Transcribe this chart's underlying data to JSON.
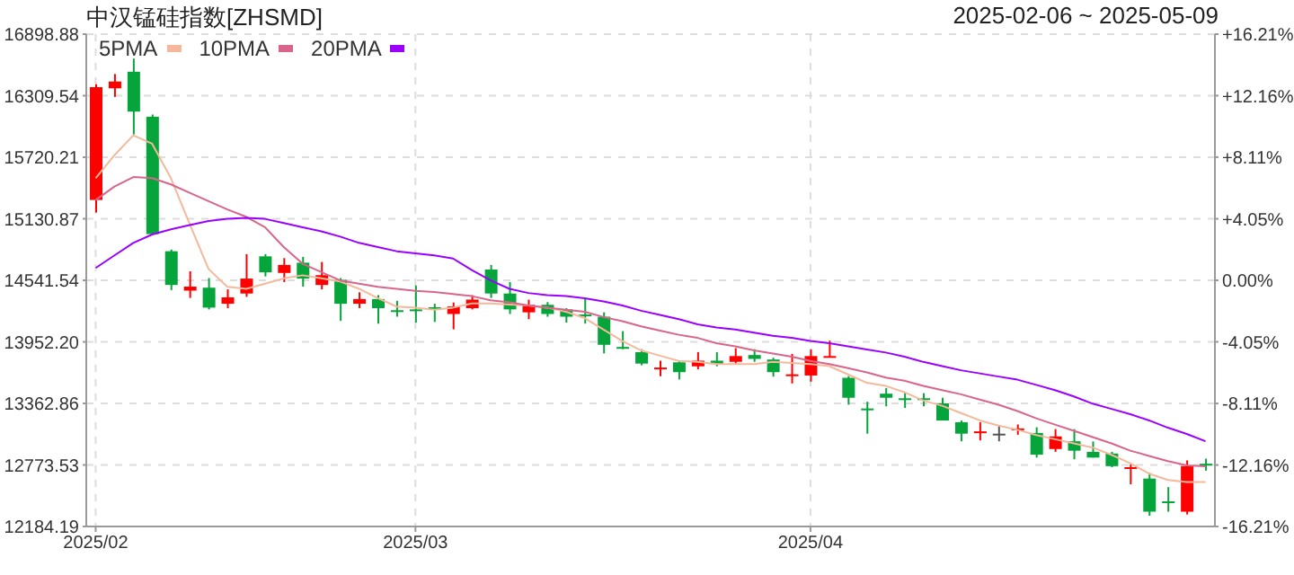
{
  "chart_data": {
    "type": "candlestick",
    "title": "中汉锰硅指数[ZHSMD]",
    "subtitle": "2025-02-06 ~ 2025-05-09",
    "categories": [
      "2025/02",
      null,
      null,
      null,
      null,
      null,
      null,
      null,
      null,
      null,
      null,
      null,
      null,
      null,
      null,
      null,
      null,
      "2025/03",
      null,
      null,
      null,
      null,
      null,
      null,
      null,
      null,
      null,
      null,
      null,
      null,
      null,
      null,
      null,
      null,
      null,
      null,
      null,
      null,
      "2025/04",
      null,
      null,
      null,
      null,
      null,
      null,
      null,
      null,
      null,
      null,
      null,
      null,
      null,
      null,
      null,
      null,
      null,
      null,
      null,
      null,
      null
    ],
    "ohlc": [
      [
        15311,
        16419,
        15191,
        16391
      ],
      [
        16380,
        16517,
        16298,
        16445
      ],
      [
        16539,
        16665,
        15938,
        16157
      ],
      [
        16108,
        16129,
        14984,
        14984
      ],
      [
        14820,
        14836,
        14448,
        14497
      ],
      [
        14443,
        14628,
        14373,
        14481
      ],
      [
        14471,
        14563,
        14263,
        14280
      ],
      [
        14317,
        14455,
        14275,
        14378
      ],
      [
        14415,
        14792,
        14383,
        14558
      ],
      [
        14771,
        14792,
        14579,
        14618
      ],
      [
        14612,
        14754,
        14525,
        14689
      ],
      [
        14710,
        14766,
        14481,
        14558
      ],
      [
        14497,
        14717,
        14455,
        14591
      ],
      [
        14546,
        14563,
        14153,
        14317
      ],
      [
        14317,
        14427,
        14275,
        14362
      ],
      [
        14362,
        14399,
        14127,
        14275
      ],
      [
        14255,
        14345,
        14193,
        14239
      ],
      [
        14263,
        14492,
        14137,
        14247
      ],
      [
        14284,
        14317,
        14143,
        14275
      ],
      [
        14219,
        14329,
        14072,
        14291
      ],
      [
        14275,
        14399,
        14263,
        14357
      ],
      [
        14645,
        14689,
        14373,
        14415
      ],
      [
        14415,
        14525,
        14219,
        14263
      ],
      [
        14235,
        14356,
        14170,
        14307
      ],
      [
        14307,
        14333,
        14193,
        14219
      ],
      [
        14263,
        14275,
        14137,
        14193
      ],
      [
        14214,
        14373,
        14127,
        14203
      ],
      [
        14193,
        14235,
        13842,
        13924
      ],
      [
        13903,
        14055,
        13882,
        13887
      ],
      [
        13854,
        13882,
        13728,
        13744
      ],
      [
        13695,
        13772,
        13624,
        13706
      ],
      [
        13756,
        13772,
        13592,
        13662
      ],
      [
        13718,
        13854,
        13690,
        13772
      ],
      [
        13772,
        13854,
        13718,
        13739
      ],
      [
        13761,
        13892,
        13744,
        13816
      ],
      [
        13826,
        13882,
        13761,
        13789
      ],
      [
        13783,
        13800,
        13619,
        13662
      ],
      [
        13630,
        13837,
        13554,
        13641
      ],
      [
        13630,
        13882,
        13571,
        13816
      ],
      [
        13810,
        13964,
        13805,
        13816
      ],
      [
        13608,
        13625,
        13351,
        13417
      ],
      [
        13314,
        13379,
        13073,
        13303
      ],
      [
        13456,
        13510,
        13335,
        13417
      ],
      [
        13412,
        13472,
        13319,
        13401
      ],
      [
        13412,
        13461,
        13335,
        13401
      ],
      [
        13363,
        13417,
        13199,
        13199
      ],
      [
        13183,
        13199,
        13000,
        13073
      ],
      [
        13084,
        13183,
        13008,
        13095
      ],
      [
        13073,
        13145,
        13000,
        13073
      ],
      [
        13112,
        13161,
        13063,
        13123
      ],
      [
        13080,
        13134,
        12844,
        12872
      ],
      [
        12926,
        13117,
        12899,
        13047
      ],
      [
        13000,
        13117,
        12828,
        12910
      ],
      [
        12899,
        12998,
        12844,
        12844
      ],
      [
        12883,
        12899,
        12752,
        12762
      ],
      [
        12741,
        12779,
        12588,
        12752
      ],
      [
        12643,
        12697,
        12287,
        12326
      ],
      [
        12425,
        12561,
        12326,
        12414
      ],
      [
        12326,
        12817,
        12299,
        12762
      ],
      [
        12785,
        12834,
        12719,
        12773
      ]
    ],
    "colors": [
      "#ff0000",
      "#ff0000",
      "#06a53b",
      "#06a53b",
      "#06a53b",
      "#ff0000",
      "#06a53b",
      "#ff0000",
      "#ff0000",
      "#06a53b",
      "#ff0000",
      "#06a53b",
      "#ff0000",
      "#06a53b",
      "#ff0000",
      "#06a53b",
      "#06a53b",
      "#06a53b",
      "#06a53b",
      "#ff0000",
      "#ff0000",
      "#06a53b",
      "#06a53b",
      "#ff0000",
      "#06a53b",
      "#06a53b",
      "#06a53b",
      "#06a53b",
      "#06a53b",
      "#06a53b",
      "#ff0000",
      "#06a53b",
      "#ff0000",
      "#06a53b",
      "#ff0000",
      "#06a53b",
      "#06a53b",
      "#ff0000",
      "#ff0000",
      "#ff0000",
      "#06a53b",
      "#06a53b",
      "#06a53b",
      "#06a53b",
      "#06a53b",
      "#06a53b",
      "#06a53b",
      "#ff0000",
      "#555555",
      "#ff0000",
      "#06a53b",
      "#ff0000",
      "#06a53b",
      "#06a53b",
      "#06a53b",
      "#ff0000",
      "#06a53b",
      "#06a53b",
      "#ff0000",
      "#06a53b"
    ],
    "series": [
      {
        "name": "5PMA",
        "type": "line",
        "color": "#f5b89b",
        "values": [
          15520,
          15740,
          15930,
          15850,
          15520,
          15080,
          14650,
          14480,
          14460,
          14510,
          14560,
          14590,
          14560,
          14530,
          14460,
          14370,
          14290,
          14280,
          14260,
          14280,
          14320,
          14320,
          14310,
          14300,
          14280,
          14240,
          14180,
          14070,
          13960,
          13870,
          13820,
          13770,
          13760,
          13740,
          13740,
          13740,
          13760,
          13750,
          13740,
          13720,
          13640,
          13560,
          13530,
          13470,
          13390,
          13340,
          13270,
          13200,
          13150,
          13110,
          13060,
          13020,
          12980,
          12940,
          12870,
          12790,
          12690,
          12630,
          12610,
          12610
        ]
      },
      {
        "name": "10PMA",
        "type": "line",
        "color": "#d9658a",
        "values": [
          15310,
          15440,
          15530,
          15520,
          15460,
          15380,
          15300,
          15220,
          15150,
          15050,
          14860,
          14700,
          14620,
          14540,
          14510,
          14480,
          14460,
          14440,
          14430,
          14410,
          14390,
          14350,
          14330,
          14300,
          14280,
          14260,
          14240,
          14190,
          14150,
          14100,
          14060,
          14020,
          13990,
          13940,
          13910,
          13870,
          13840,
          13810,
          13770,
          13740,
          13700,
          13660,
          13610,
          13580,
          13530,
          13490,
          13450,
          13400,
          13350,
          13290,
          13220,
          13160,
          13100,
          13040,
          12980,
          12910,
          12860,
          12810,
          12770,
          12760
        ]
      },
      {
        "name": "20PMA",
        "type": "line",
        "color": "#9b00ff",
        "values": [
          14660,
          14780,
          14900,
          14980,
          15030,
          15070,
          15110,
          15130,
          15140,
          15130,
          15090,
          15050,
          15010,
          14960,
          14900,
          14860,
          14820,
          14800,
          14780,
          14750,
          14640,
          14540,
          14460,
          14420,
          14400,
          14390,
          14370,
          14340,
          14300,
          14250,
          14210,
          14170,
          14120,
          14090,
          14070,
          14040,
          14010,
          13990,
          13960,
          13940,
          13910,
          13880,
          13850,
          13810,
          13760,
          13720,
          13680,
          13650,
          13620,
          13590,
          13540,
          13490,
          13430,
          13360,
          13310,
          13260,
          13200,
          13130,
          13070,
          13000
        ]
      }
    ],
    "ylim": [
      12184.19,
      16898.88
    ],
    "yticks": [
      12184.19,
      12773.53,
      13362.86,
      {
        "value": 13952.2,
        "label": "13952.20"
      },
      14541.54,
      15130.87,
      15720.21,
      16309.54,
      16898.88
    ],
    "y2lim": [
      -16.21,
      16.21
    ],
    "y2ticks": [
      {
        "value": -16.21,
        "label": "-16.21%"
      },
      {
        "value": -12.16,
        "label": "-12.16%"
      },
      {
        "value": -8.11,
        "label": "-8.11%"
      },
      {
        "value": -4.05,
        "label": "-4.05%"
      },
      {
        "value": 0,
        "label": "0.00%"
      },
      {
        "value": 4.05,
        "label": "+4.05%"
      },
      {
        "value": 8.11,
        "label": "+8.11%"
      },
      {
        "value": 12.16,
        "label": "+12.16%"
      },
      {
        "value": 16.21,
        "label": "+16.21%"
      }
    ],
    "grid": true,
    "legend": "top left",
    "marker": "none",
    "line_style": "solid"
  }
}
